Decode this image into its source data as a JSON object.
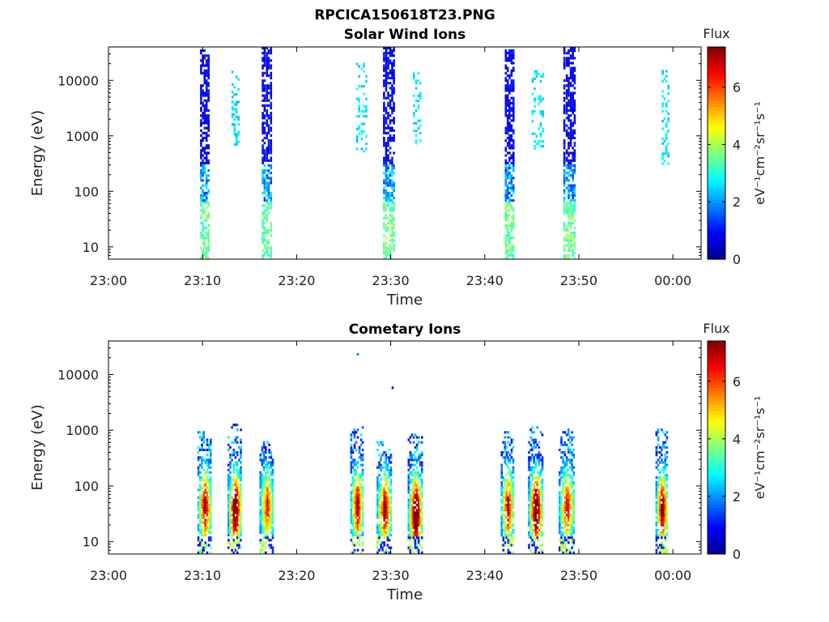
{
  "figure_title": "RPCICA150618T23.PNG",
  "colors": {
    "axes": "#000000",
    "colormap": [
      "#00008f",
      "#0000ff",
      "#0080ff",
      "#00ffff",
      "#80ff80",
      "#ffff00",
      "#ff8000",
      "#ff0000",
      "#800000"
    ]
  },
  "chart_data": [
    {
      "type": "heatmap",
      "title": "Solar Wind Ions",
      "xlabel": "Time",
      "ylabel": "Energy (eV)",
      "x_ticks": [
        "23:00",
        "23:10",
        "23:20",
        "23:30",
        "23:40",
        "23:50",
        "00:00"
      ],
      "x_range_min": [
        0,
        63
      ],
      "y_scale": "log",
      "y_range_eV": [
        6,
        40000
      ],
      "y_ticks": [
        {
          "label": "10",
          "value": 10
        },
        {
          "label": "100",
          "value": 100
        },
        {
          "label": "1000",
          "value": 1000
        },
        {
          "label": "10000",
          "value": 10000
        }
      ],
      "colorbar": {
        "title": "Flux",
        "label": "eV⁻¹cm⁻²sr⁻¹s⁻¹",
        "ticks": [
          "0",
          "2",
          "4",
          "6"
        ],
        "range": [
          0,
          7.4
        ]
      },
      "bursts": [
        {
          "t": 10.2,
          "w": 1.0,
          "emin": 6,
          "emax": 35000,
          "fmin": 0.4,
          "fmax": 1.2,
          "low_flux": 3.5,
          "density": 0.65
        },
        {
          "t": 13.5,
          "w": 0.9,
          "emin": 600,
          "emax": 14000,
          "fmin": 2.2,
          "fmax": 2.9,
          "low_flux": 2.6,
          "density": 0.3
        },
        {
          "t": 16.8,
          "w": 1.1,
          "emin": 6,
          "emax": 38000,
          "fmin": 0.4,
          "fmax": 1.2,
          "low_flux": 3.5,
          "density": 0.65
        },
        {
          "t": 26.9,
          "w": 1.2,
          "emin": 500,
          "emax": 20000,
          "fmin": 2.2,
          "fmax": 3.0,
          "low_flux": 2.6,
          "density": 0.25
        },
        {
          "t": 29.8,
          "w": 1.3,
          "emin": 6,
          "emax": 40000,
          "fmin": 0.4,
          "fmax": 1.2,
          "low_flux": 3.5,
          "density": 0.65
        },
        {
          "t": 32.8,
          "w": 0.9,
          "emin": 700,
          "emax": 14000,
          "fmin": 2.2,
          "fmax": 2.9,
          "low_flux": 2.6,
          "density": 0.3
        },
        {
          "t": 42.6,
          "w": 1.0,
          "emin": 6,
          "emax": 35000,
          "fmin": 0.4,
          "fmax": 1.2,
          "low_flux": 3.5,
          "density": 0.65
        },
        {
          "t": 45.6,
          "w": 1.3,
          "emin": 500,
          "emax": 14000,
          "fmin": 2.2,
          "fmax": 3.0,
          "low_flux": 2.6,
          "density": 0.25
        },
        {
          "t": 49.0,
          "w": 1.3,
          "emin": 6,
          "emax": 40000,
          "fmin": 0.4,
          "fmax": 1.2,
          "low_flux": 3.5,
          "density": 0.65
        },
        {
          "t": 59.2,
          "w": 0.8,
          "emin": 300,
          "emax": 15000,
          "fmin": 2.2,
          "fmax": 2.9,
          "low_flux": 2.6,
          "density": 0.3
        }
      ]
    },
    {
      "type": "heatmap",
      "title": "Cometary Ions",
      "xlabel": "Time",
      "ylabel": "Energy (eV)",
      "x_ticks": [
        "23:00",
        "23:10",
        "23:20",
        "23:30",
        "23:40",
        "23:50",
        "00:00"
      ],
      "x_range_min": [
        0,
        63
      ],
      "y_scale": "log",
      "y_range_eV": [
        6,
        40000
      ],
      "y_ticks": [
        {
          "label": "10",
          "value": 10
        },
        {
          "label": "100",
          "value": 100
        },
        {
          "label": "1000",
          "value": 1000
        },
        {
          "label": "10000",
          "value": 10000
        }
      ],
      "colorbar": {
        "title": "Flux",
        "label": "eV⁻¹cm⁻²sr⁻¹s⁻¹",
        "ticks": [
          "0",
          "2",
          "4",
          "6"
        ],
        "range": [
          0,
          7.4
        ]
      },
      "bursts": [
        {
          "t": 10.2,
          "w": 1.5,
          "emin": 6,
          "emax": 900,
          "peak_e": 40,
          "peak_flux": 5.2
        },
        {
          "t": 13.4,
          "w": 1.5,
          "emin": 6,
          "emax": 1200,
          "peak_e": 35,
          "peak_flux": 6.5
        },
        {
          "t": 16.8,
          "w": 1.5,
          "emin": 6,
          "emax": 600,
          "peak_e": 40,
          "peak_flux": 4.2
        },
        {
          "t": 26.4,
          "w": 1.4,
          "emin": 6,
          "emax": 1100,
          "peak_e": 40,
          "peak_flux": 5.0
        },
        {
          "t": 29.3,
          "w": 1.6,
          "emin": 6,
          "emax": 600,
          "peak_e": 35,
          "peak_flux": 5.2
        },
        {
          "t": 32.6,
          "w": 1.6,
          "emin": 6,
          "emax": 800,
          "peak_e": 30,
          "peak_flux": 6.8
        },
        {
          "t": 42.4,
          "w": 1.4,
          "emin": 6,
          "emax": 1300,
          "peak_e": 40,
          "peak_flux": 5.0
        },
        {
          "t": 45.4,
          "w": 1.6,
          "emin": 6,
          "emax": 1100,
          "peak_e": 35,
          "peak_flux": 6.6
        },
        {
          "t": 48.7,
          "w": 1.7,
          "emin": 6,
          "emax": 1000,
          "peak_e": 40,
          "peak_flux": 4.6
        },
        {
          "t": 58.8,
          "w": 1.3,
          "emin": 6,
          "emax": 1000,
          "peak_e": 35,
          "peak_flux": 5.8
        }
      ],
      "isolated_points": [
        {
          "t": 26.4,
          "e": 22000,
          "flux": 1.8
        },
        {
          "t": 30.1,
          "e": 5500,
          "flux": 0.4
        }
      ]
    }
  ]
}
